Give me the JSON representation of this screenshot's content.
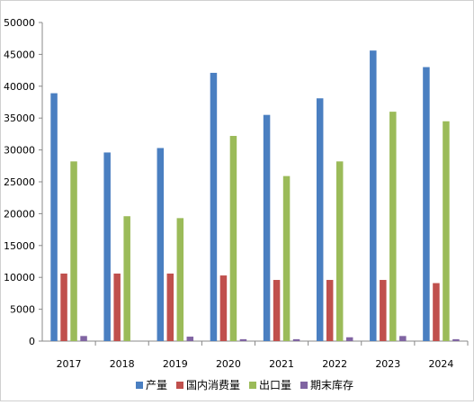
{
  "chart_data": {
    "type": "bar",
    "categories": [
      "2017",
      "2018",
      "2019",
      "2020",
      "2021",
      "2022",
      "2023",
      "2024"
    ],
    "series": [
      {
        "name": "产量",
        "color": "#4a7fc1",
        "values": [
          38900,
          29600,
          30300,
          42100,
          35500,
          38100,
          45600,
          43000
        ]
      },
      {
        "name": "国内消费量",
        "color": "#c0504d",
        "values": [
          10600,
          10600,
          10600,
          10300,
          9600,
          9600,
          9600,
          9100
        ]
      },
      {
        "name": "出口量",
        "color": "#9bbb59",
        "values": [
          28200,
          19600,
          19300,
          32200,
          25900,
          28200,
          36000,
          34500
        ]
      },
      {
        "name": "期末库存",
        "color": "#8064a2",
        "values": [
          800,
          0,
          700,
          300,
          300,
          600,
          800,
          300
        ]
      }
    ],
    "ylim": [
      0,
      50000
    ],
    "yticks": [
      0,
      5000,
      10000,
      15000,
      20000,
      25000,
      30000,
      35000,
      40000,
      45000,
      50000
    ],
    "grid": false,
    "legend_position": "bottom"
  }
}
